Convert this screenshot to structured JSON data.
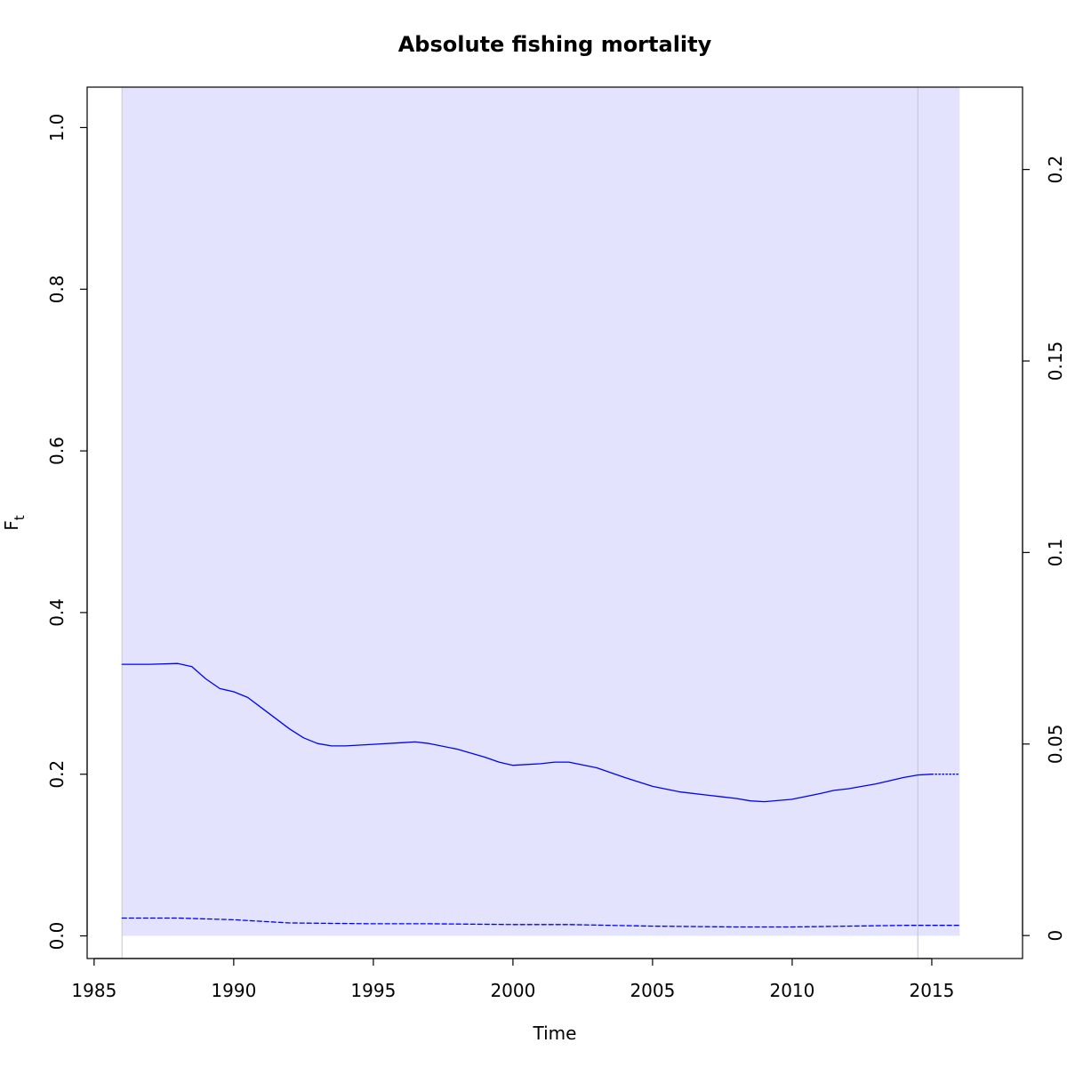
{
  "chart_data": {
    "type": "line",
    "title": "Absolute fishing mortality",
    "xlabel": "Time",
    "ylabel": "F",
    "ylabel_subscript": "t",
    "xlim": [
      1984.75,
      2018.25
    ],
    "ylim": [
      -0.028,
      1.05
    ],
    "xticks": [
      1985,
      1990,
      1995,
      2000,
      2005,
      2010,
      2015
    ],
    "yticks": [
      0.0,
      0.2,
      0.4,
      0.6,
      0.8,
      1.0
    ],
    "ytick_labels": [
      "0.0",
      "0.2",
      "0.4",
      "0.6",
      "0.8",
      "1.0"
    ],
    "y2lim": [
      -0.006,
      0.2215
    ],
    "y2ticks": [
      0,
      0.05,
      0.1,
      0.15,
      0.2
    ],
    "y2tick_labels": [
      "0",
      "0.05",
      "0.1",
      "0.15",
      "0.2"
    ],
    "confidence_band": {
      "x_start": 1986.0,
      "x_end": 2016.0,
      "lower": 0.0,
      "upper": 1.05,
      "color": "#e3e3fd"
    },
    "vertical_lines": [
      {
        "x": 1986.0,
        "color": "#cfcfcf"
      },
      {
        "x": 2014.5,
        "color": "#c8c8d8"
      }
    ],
    "series": [
      {
        "style": "solid",
        "color": "#0000ff",
        "x": [
          1986.0,
          1987.0,
          1988.0,
          1988.5,
          1989.0,
          1989.5,
          1990.0,
          1990.5,
          1991.0,
          1992.0,
          1992.5,
          1993.0,
          1993.5,
          1994.0,
          1995.0,
          1996.0,
          1996.5,
          1997.0,
          1998.0,
          1999.0,
          1999.5,
          2000.0,
          2001.0,
          2001.5,
          2002.0,
          2003.0,
          2004.0,
          2005.0,
          2006.0,
          2007.0,
          2007.5,
          2008.0,
          2008.5,
          2009.0,
          2010.0,
          2011.0,
          2011.5,
          2012.0,
          2013.0,
          2014.0,
          2014.5,
          2015.0
        ],
        "y": [
          0.336,
          0.336,
          0.337,
          0.333,
          0.318,
          0.306,
          0.302,
          0.295,
          0.282,
          0.256,
          0.245,
          0.238,
          0.235,
          0.235,
          0.237,
          0.239,
          0.24,
          0.238,
          0.231,
          0.221,
          0.215,
          0.211,
          0.213,
          0.215,
          0.215,
          0.208,
          0.196,
          0.185,
          0.178,
          0.174,
          0.172,
          0.17,
          0.167,
          0.166,
          0.169,
          0.176,
          0.18,
          0.182,
          0.188,
          0.196,
          0.199,
          0.2
        ]
      },
      {
        "style": "dotted",
        "color": "#0000ff",
        "x": [
          2015.0,
          2016.0
        ],
        "y": [
          0.2,
          0.2
        ]
      },
      {
        "style": "dashed",
        "color": "#0000ff",
        "x": [
          1986.0,
          1988.0,
          1990.0,
          1992.0,
          1995.0,
          1997.0,
          2000.0,
          2002.0,
          2005.0,
          2008.0,
          2010.0,
          2012.0,
          2014.0,
          2016.0
        ],
        "y": [
          0.022,
          0.022,
          0.02,
          0.016,
          0.015,
          0.015,
          0.014,
          0.014,
          0.012,
          0.011,
          0.011,
          0.012,
          0.013,
          0.013
        ]
      }
    ],
    "grid": false,
    "legend": "none"
  }
}
